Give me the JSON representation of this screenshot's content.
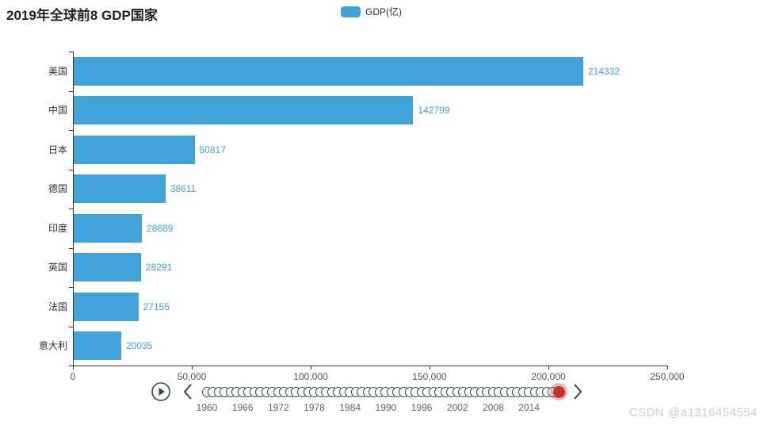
{
  "title": "2019年全球前8 GDP国家",
  "legend": {
    "label": "GDP(亿)"
  },
  "colors": {
    "bar": "#41a2d9",
    "value_label": "#3fa3e0",
    "axis": "#333333",
    "axis_label": "#555555",
    "timeline_chrome": "#304654",
    "checkpoint": "#c23531",
    "checkpoint_halo": "rgba(194,53,49,0.35)",
    "year_label": "#5a6470",
    "watermark": "#cccccc"
  },
  "chart_data": {
    "type": "bar",
    "orientation": "horizontal",
    "title": "2019年全球前8 GDP国家",
    "series_name": "GDP(亿)",
    "categories": [
      "美国",
      "中国",
      "日本",
      "德国",
      "印度",
      "英国",
      "法国",
      "意大利"
    ],
    "values": [
      214332,
      142799,
      50817,
      38611,
      28689,
      28291,
      27155,
      20035
    ],
    "value_labels": [
      "214332",
      "142799",
      "50817",
      "38611",
      "28689",
      "28291",
      "27155",
      "20035"
    ],
    "xlim": [
      0,
      250000
    ],
    "x_tick_labels": [
      "0",
      "50,000",
      "100,000",
      "150,000",
      "200,000",
      "250,000"
    ],
    "grid": false,
    "legend_position": "top-center",
    "value_label_position": "right-of-bar"
  },
  "timeline": {
    "start_year": 1960,
    "end_year": 2019,
    "current_year": 2019,
    "visible_year_labels": [
      "1960",
      "1966",
      "1972",
      "1978",
      "1984",
      "1990",
      "1996",
      "2002",
      "2008",
      "2014"
    ],
    "play_icon": "play-circle-icon",
    "prev_icon": "chevron-left-icon",
    "next_icon": "chevron-right-icon"
  },
  "watermark": "CSDN @a1316454554"
}
